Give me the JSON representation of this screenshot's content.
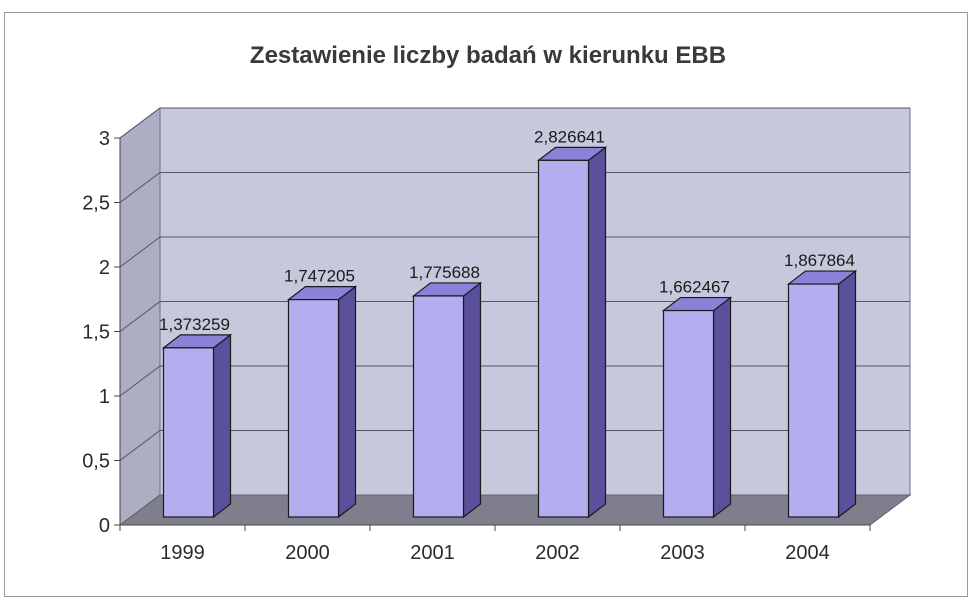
{
  "chart_data": {
    "type": "bar",
    "title": "Zestawienie liczby badań w kierunku EBB",
    "categories": [
      "1999",
      "2000",
      "2001",
      "2002",
      "2003",
      "2004"
    ],
    "values": [
      1.373259,
      1.747205,
      1.775688,
      2.826641,
      1.662467,
      1.867864
    ],
    "data_labels": [
      "1,373259",
      "1,747205",
      "1,775688",
      "2,826641",
      "1,662467",
      "1,867864"
    ],
    "yticks": [
      "0",
      "0,5",
      "1",
      "1,5",
      "2",
      "2,5",
      "3"
    ],
    "ylim": [
      0,
      3
    ],
    "grid": true,
    "legend": "none",
    "colors": {
      "bar_front": "#b3aef0",
      "bar_side": "#5a509c",
      "bar_top": "#8a82d6",
      "back_wall": "#c8c8dc",
      "side_wall": "#adadc4",
      "floor": "#7e7e8c"
    }
  }
}
